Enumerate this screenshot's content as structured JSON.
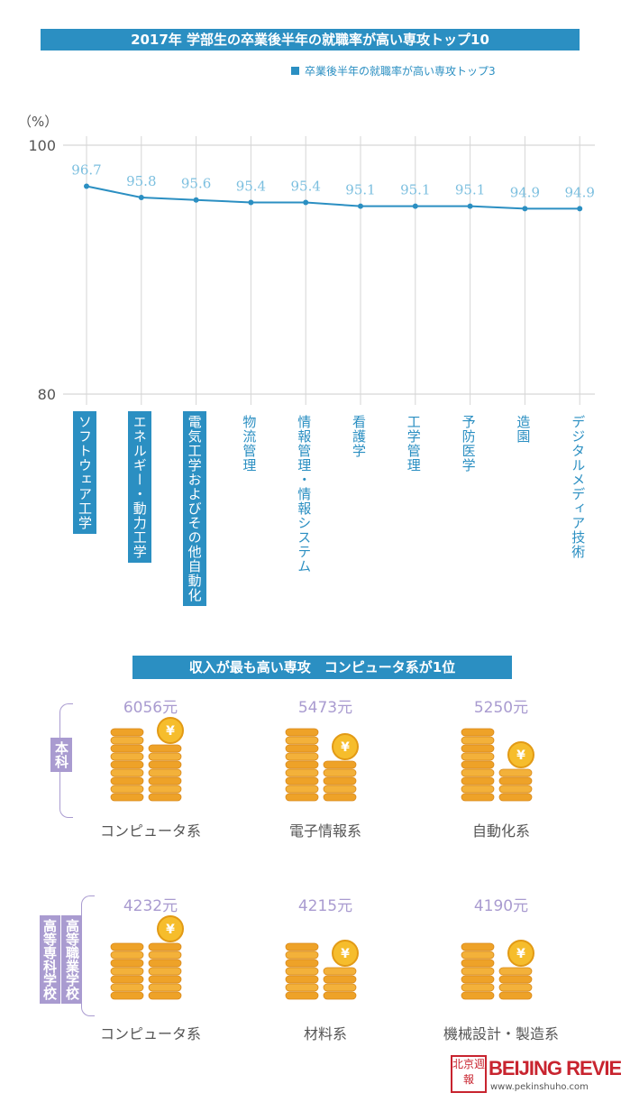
{
  "title": "2017年 学部生の卒業後半年の就職率が高い専攻トップ10",
  "legend": "卒業後半年の就職率が高い専攻トップ3",
  "chart_data": {
    "type": "line",
    "ylabel": "（%）",
    "ylim": [
      80,
      100
    ],
    "yticks": [
      "100",
      "80"
    ],
    "categories": [
      "ソフトウェア工学",
      "エネルギー・動力工学",
      "電気工学およびその他自動化",
      "物流管理",
      "情報管理・情報システム",
      "看護学",
      "工学管理",
      "予防医学",
      "造園",
      "デジタルメディア技術"
    ],
    "values": [
      96.7,
      95.8,
      95.6,
      95.4,
      95.4,
      95.1,
      95.1,
      95.1,
      94.9,
      94.9
    ],
    "value_labels": [
      "96.7",
      "95.8",
      "95.6",
      "95.4",
      "95.4",
      "95.1",
      "95.1",
      "95.1",
      "94.9",
      "94.9"
    ],
    "highlighted": [
      true,
      true,
      true,
      false,
      false,
      false,
      false,
      false,
      false,
      false
    ],
    "grid": true,
    "color": "#2b8fc2"
  },
  "income": {
    "title": "収入が最も高い専攻　コンピュータ系が1位",
    "groups": [
      {
        "label": "本科",
        "items": [
          {
            "amount": "6056元",
            "major": "コンピュータ系"
          },
          {
            "amount": "5473元",
            "major": "電子情報系"
          },
          {
            "amount": "5250元",
            "major": "自動化系"
          }
        ]
      },
      {
        "label_col1": "高等職業学校",
        "label_col2": "高等専科学校",
        "items": [
          {
            "amount": "4232元",
            "major": "コンピュータ系"
          },
          {
            "amount": "4215元",
            "major": "材料系"
          },
          {
            "amount": "4190元",
            "major": "機械設計・製造系"
          }
        ]
      }
    ]
  },
  "logo": {
    "seal": "北京週報",
    "brand": "BEIJING REVIEW",
    "url": "www.pekinshuho.com"
  },
  "colors": {
    "accent": "#2b8fc2",
    "purple": "#a99bd0",
    "coin": "#f0a020"
  }
}
